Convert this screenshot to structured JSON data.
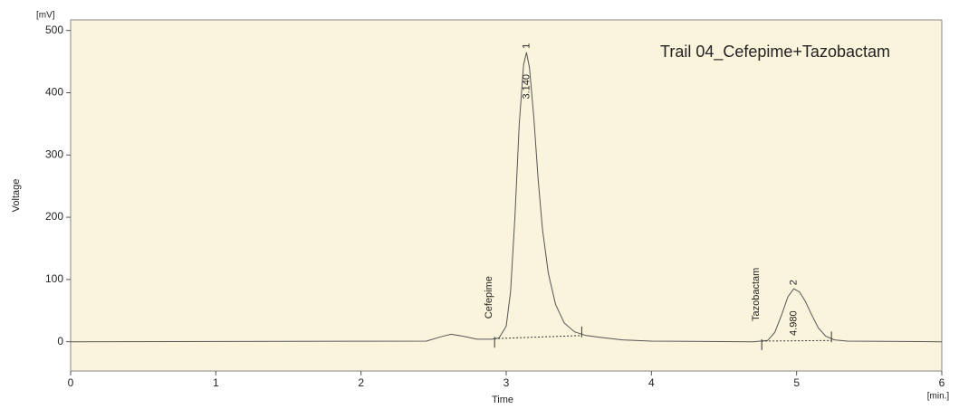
{
  "chart_data": {
    "type": "line",
    "title": "Trail 04_Cefepime+Tazobactam",
    "y_unit": "[mV]",
    "x_unit": "[min.]",
    "ylabel": "Voltage",
    "xlabel": "Time",
    "color": "#555555",
    "background": "#fbf4dc",
    "x": [
      0,
      2.45,
      2.55,
      2.62,
      2.7,
      2.8,
      2.9,
      2.95,
      3.0,
      3.03,
      3.06,
      3.09,
      3.12,
      3.14,
      3.16,
      3.19,
      3.22,
      3.25,
      3.29,
      3.34,
      3.4,
      3.47,
      3.55,
      3.65,
      3.8,
      4.0,
      4.7,
      4.8,
      4.85,
      4.9,
      4.94,
      4.98,
      5.02,
      5.06,
      5.1,
      5.15,
      5.2,
      5.26,
      5.35,
      6
    ],
    "values": [
      0,
      1,
      8,
      12,
      9,
      4,
      4,
      6,
      25,
      80,
      200,
      350,
      445,
      465,
      440,
      360,
      260,
      180,
      110,
      60,
      30,
      16,
      10,
      7,
      3,
      1,
      0,
      2,
      15,
      45,
      72,
      85,
      80,
      65,
      45,
      22,
      9,
      3,
      1,
      0
    ],
    "integration_baselines": [
      {
        "x": [
          2.92,
          3.52
        ],
        "y": [
          5,
          10
        ]
      },
      {
        "x": [
          4.76,
          5.24
        ],
        "y": [
          1,
          2
        ]
      }
    ],
    "peaks": [
      {
        "name": "Cefepime",
        "time": {
          "value": 3.14,
          "label": "3.140"
        },
        "number": 1
      },
      {
        "name": "Tazobactam",
        "time": {
          "value": 4.98,
          "label": "4.980"
        },
        "number": 2
      }
    ],
    "xlim": [
      0,
      6
    ],
    "xticks": [
      0,
      1,
      2,
      3,
      4,
      5,
      6
    ],
    "ylim": [
      -47,
      517
    ],
    "yticks": [
      0,
      100,
      200,
      300,
      400,
      500
    ]
  }
}
